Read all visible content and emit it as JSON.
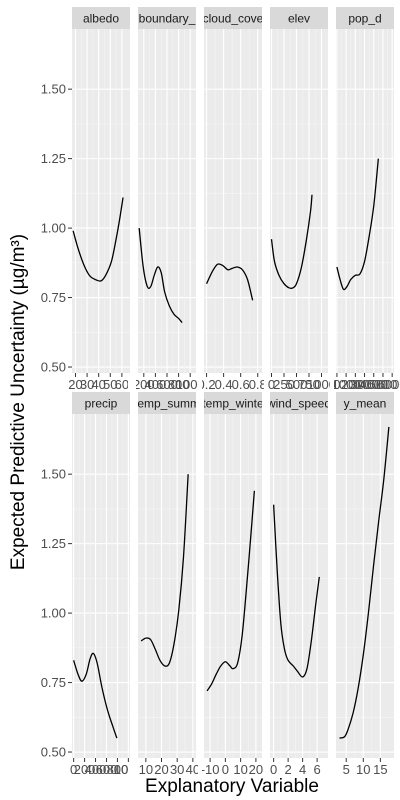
{
  "chart_data": {
    "type": "line",
    "ylabel": "Expected Predictive Uncertainty (µg/m³)",
    "xlabel": "Explanatory Variable",
    "ylim": [
      0.5,
      1.7
    ],
    "yticks": [
      "0.50",
      "0.75",
      "1.00",
      "1.25",
      "1.50"
    ],
    "yticks_values": [
      0.5,
      0.75,
      1.0,
      1.25,
      1.5
    ],
    "grid": true,
    "panels": [
      {
        "strip": "albedo",
        "xlim": [
          17,
          67
        ],
        "xticks": [
          "20",
          "30",
          "40",
          "50",
          "60"
        ],
        "xticks_values": [
          20,
          30,
          40,
          50,
          60
        ],
        "curve": [
          [
            18,
            0.99
          ],
          [
            22,
            0.93
          ],
          [
            27,
            0.87
          ],
          [
            32,
            0.83
          ],
          [
            37,
            0.815
          ],
          [
            42,
            0.81
          ],
          [
            46,
            0.83
          ],
          [
            51,
            0.88
          ],
          [
            55,
            0.96
          ],
          [
            58,
            1.03
          ],
          [
            61,
            1.11
          ]
        ]
      },
      {
        "strip": "boundary_",
        "xlim": [
          100,
          1100
        ],
        "xticks": [
          "200",
          "400",
          "600",
          "800",
          "1000"
        ],
        "xticks_values": [
          200,
          400,
          600,
          800,
          1000
        ],
        "curve": [
          [
            120,
            1.0
          ],
          [
            190,
            0.86
          ],
          [
            260,
            0.79
          ],
          [
            320,
            0.79
          ],
          [
            380,
            0.83
          ],
          [
            440,
            0.86
          ],
          [
            500,
            0.84
          ],
          [
            560,
            0.77
          ],
          [
            640,
            0.72
          ],
          [
            720,
            0.69
          ],
          [
            800,
            0.675
          ],
          [
            860,
            0.66
          ]
        ]
      },
      {
        "strip": "cloud_cove",
        "xlim": [
          0.17,
          0.85
        ],
        "xticks": [
          "0.2",
          "0.4",
          "0.6",
          "0.8"
        ],
        "xticks_values": [
          0.2,
          0.4,
          0.6,
          0.8
        ],
        "curve": [
          [
            0.2,
            0.8
          ],
          [
            0.27,
            0.845
          ],
          [
            0.33,
            0.87
          ],
          [
            0.39,
            0.865
          ],
          [
            0.45,
            0.85
          ],
          [
            0.5,
            0.855
          ],
          [
            0.56,
            0.86
          ],
          [
            0.62,
            0.85
          ],
          [
            0.68,
            0.815
          ],
          [
            0.74,
            0.74
          ]
        ]
      },
      {
        "strip": "elev",
        "xlim": [
          -30,
          1130
        ],
        "xticks": [
          "0",
          "250",
          "500",
          "750",
          "1000"
        ],
        "xticks_values": [
          0,
          250,
          500,
          750,
          1000
        ],
        "curve": [
          [
            0,
            0.96
          ],
          [
            60,
            0.88
          ],
          [
            150,
            0.83
          ],
          [
            250,
            0.8
          ],
          [
            350,
            0.785
          ],
          [
            430,
            0.785
          ],
          [
            500,
            0.8
          ],
          [
            600,
            0.86
          ],
          [
            700,
            0.96
          ],
          [
            780,
            1.06
          ],
          [
            810,
            1.12
          ]
        ]
      },
      {
        "strip": "pop_d",
        "xlim": [
          -100,
          6200
        ],
        "xticks": [
          "0",
          "1000",
          "2000",
          "3000",
          "4000",
          "5000",
          "6000"
        ],
        "xticks_values": [
          0,
          1000,
          2000,
          3000,
          4000,
          5000,
          6000
        ],
        "curve": [
          [
            0,
            0.86
          ],
          [
            300,
            0.82
          ],
          [
            700,
            0.78
          ],
          [
            1100,
            0.79
          ],
          [
            1500,
            0.815
          ],
          [
            2000,
            0.83
          ],
          [
            2500,
            0.835
          ],
          [
            3000,
            0.88
          ],
          [
            3500,
            0.97
          ],
          [
            4000,
            1.08
          ],
          [
            4500,
            1.25
          ]
        ]
      },
      {
        "strip": "precip",
        "xlim": [
          -30,
          1030
        ],
        "xticks": [
          "0",
          "200",
          "400",
          "600",
          "800",
          "1000"
        ],
        "xticks_values": [
          0,
          200,
          400,
          600,
          800,
          1000
        ],
        "curve": [
          [
            0,
            0.83
          ],
          [
            80,
            0.78
          ],
          [
            150,
            0.755
          ],
          [
            230,
            0.78
          ],
          [
            300,
            0.835
          ],
          [
            360,
            0.855
          ],
          [
            430,
            0.82
          ],
          [
            520,
            0.73
          ],
          [
            620,
            0.65
          ],
          [
            720,
            0.59
          ],
          [
            790,
            0.55
          ]
        ]
      },
      {
        "strip": "temp_summ",
        "xlim": [
          5,
          42
        ],
        "xticks": [
          "10",
          "20",
          "30",
          "40"
        ],
        "xticks_values": [
          10,
          20,
          30,
          40
        ],
        "curve": [
          [
            7,
            0.9
          ],
          [
            10,
            0.91
          ],
          [
            13,
            0.905
          ],
          [
            16,
            0.87
          ],
          [
            19,
            0.83
          ],
          [
            22,
            0.81
          ],
          [
            25,
            0.82
          ],
          [
            28,
            0.89
          ],
          [
            31,
            1.01
          ],
          [
            34,
            1.2
          ],
          [
            37,
            1.5
          ]
        ]
      },
      {
        "strip": "temp_winte",
        "xlim": [
          -14,
          24
        ],
        "xticks": [
          "-10",
          "0",
          "10",
          "20"
        ],
        "xticks_values": [
          -10,
          0,
          10,
          20
        ],
        "curve": [
          [
            -12,
            0.72
          ],
          [
            -9,
            0.745
          ],
          [
            -6,
            0.78
          ],
          [
            -3,
            0.81
          ],
          [
            0,
            0.825
          ],
          [
            3,
            0.81
          ],
          [
            5,
            0.8
          ],
          [
            8,
            0.82
          ],
          [
            11,
            0.92
          ],
          [
            14,
            1.1
          ],
          [
            17,
            1.3
          ],
          [
            19,
            1.44
          ]
        ]
      },
      {
        "strip": "wind_speed",
        "xlim": [
          -0.5,
          7.5
        ],
        "xticks": [
          "0",
          "2",
          "4",
          "6"
        ],
        "xticks_values": [
          0,
          2,
          4,
          6
        ],
        "curve": [
          [
            0,
            1.39
          ],
          [
            0.5,
            1.15
          ],
          [
            1,
            0.96
          ],
          [
            1.5,
            0.87
          ],
          [
            2,
            0.83
          ],
          [
            2.7,
            0.81
          ],
          [
            3.3,
            0.79
          ],
          [
            4,
            0.77
          ],
          [
            4.6,
            0.8
          ],
          [
            5.2,
            0.9
          ],
          [
            5.8,
            1.03
          ],
          [
            6.3,
            1.13
          ]
        ]
      },
      {
        "strip": "y_mean",
        "xlim": [
          2,
          19
        ],
        "xticks": [
          "5",
          "10",
          "15"
        ],
        "xticks_values": [
          5,
          10,
          15
        ],
        "curve": [
          [
            3,
            0.55
          ],
          [
            4.5,
            0.555
          ],
          [
            5.5,
            0.58
          ],
          [
            7,
            0.64
          ],
          [
            8.5,
            0.73
          ],
          [
            10,
            0.85
          ],
          [
            11.5,
            1.0
          ],
          [
            13,
            1.17
          ],
          [
            14.5,
            1.33
          ],
          [
            16,
            1.48
          ],
          [
            17.5,
            1.67
          ]
        ]
      }
    ]
  }
}
